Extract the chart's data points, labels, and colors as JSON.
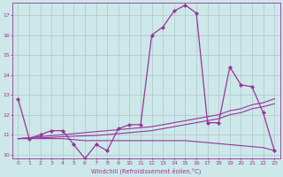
{
  "background_color": "#cce8e8",
  "line_color": "#993399",
  "marker_color": "#993399",
  "grid_color": "#aabbcc",
  "xlabel": "Windchill (Refroidissement éolien,°C)",
  "xlabel_color": "#993399",
  "tick_color": "#993399",
  "ylim": [
    9.8,
    17.6
  ],
  "xlim": [
    -0.5,
    23.5
  ],
  "yticks": [
    10,
    11,
    12,
    13,
    14,
    15,
    16,
    17
  ],
  "xticks": [
    0,
    1,
    2,
    3,
    4,
    5,
    6,
    7,
    8,
    9,
    10,
    11,
    12,
    13,
    14,
    15,
    16,
    17,
    18,
    19,
    20,
    21,
    22,
    23
  ],
  "series1_x": [
    0,
    1,
    2,
    3,
    4,
    5,
    6,
    7,
    8,
    9,
    10,
    11,
    12,
    13,
    14,
    15,
    16,
    17,
    18,
    19,
    20,
    21,
    22,
    23
  ],
  "series1_y": [
    12.8,
    10.8,
    11.0,
    11.2,
    11.2,
    10.5,
    9.8,
    10.5,
    10.2,
    11.3,
    11.5,
    11.5,
    16.0,
    16.4,
    17.2,
    17.5,
    17.1,
    11.6,
    11.6,
    14.4,
    13.5,
    13.4,
    12.1,
    10.2
  ],
  "series2_x": [
    0,
    1,
    2,
    3,
    4,
    5,
    6,
    7,
    8,
    9,
    10,
    11,
    12,
    13,
    14,
    15,
    16,
    17,
    18,
    19,
    20,
    21,
    22,
    23
  ],
  "series2_y": [
    10.8,
    10.85,
    10.9,
    10.95,
    11.0,
    11.05,
    11.1,
    11.15,
    11.2,
    11.25,
    11.3,
    11.35,
    11.4,
    11.5,
    11.6,
    11.7,
    11.8,
    11.9,
    12.0,
    12.2,
    12.3,
    12.5,
    12.6,
    12.8
  ],
  "series3_x": [
    0,
    1,
    2,
    3,
    4,
    5,
    6,
    7,
    8,
    9,
    10,
    11,
    12,
    13,
    14,
    15,
    16,
    17,
    18,
    19,
    20,
    21,
    22,
    23
  ],
  "series3_y": [
    10.8,
    10.82,
    10.84,
    10.86,
    10.9,
    10.92,
    10.94,
    10.96,
    11.0,
    11.05,
    11.1,
    11.15,
    11.2,
    11.3,
    11.4,
    11.5,
    11.6,
    11.7,
    11.8,
    12.0,
    12.1,
    12.3,
    12.4,
    12.55
  ],
  "series4_x": [
    0,
    1,
    2,
    3,
    4,
    5,
    6,
    7,
    8,
    9,
    10,
    11,
    12,
    13,
    14,
    15,
    16,
    17,
    18,
    19,
    20,
    21,
    22,
    23
  ],
  "series4_y": [
    10.8,
    10.8,
    10.8,
    10.8,
    10.8,
    10.75,
    10.7,
    10.7,
    10.7,
    10.7,
    10.7,
    10.7,
    10.7,
    10.7,
    10.7,
    10.7,
    10.65,
    10.6,
    10.55,
    10.5,
    10.45,
    10.4,
    10.35,
    10.2
  ]
}
